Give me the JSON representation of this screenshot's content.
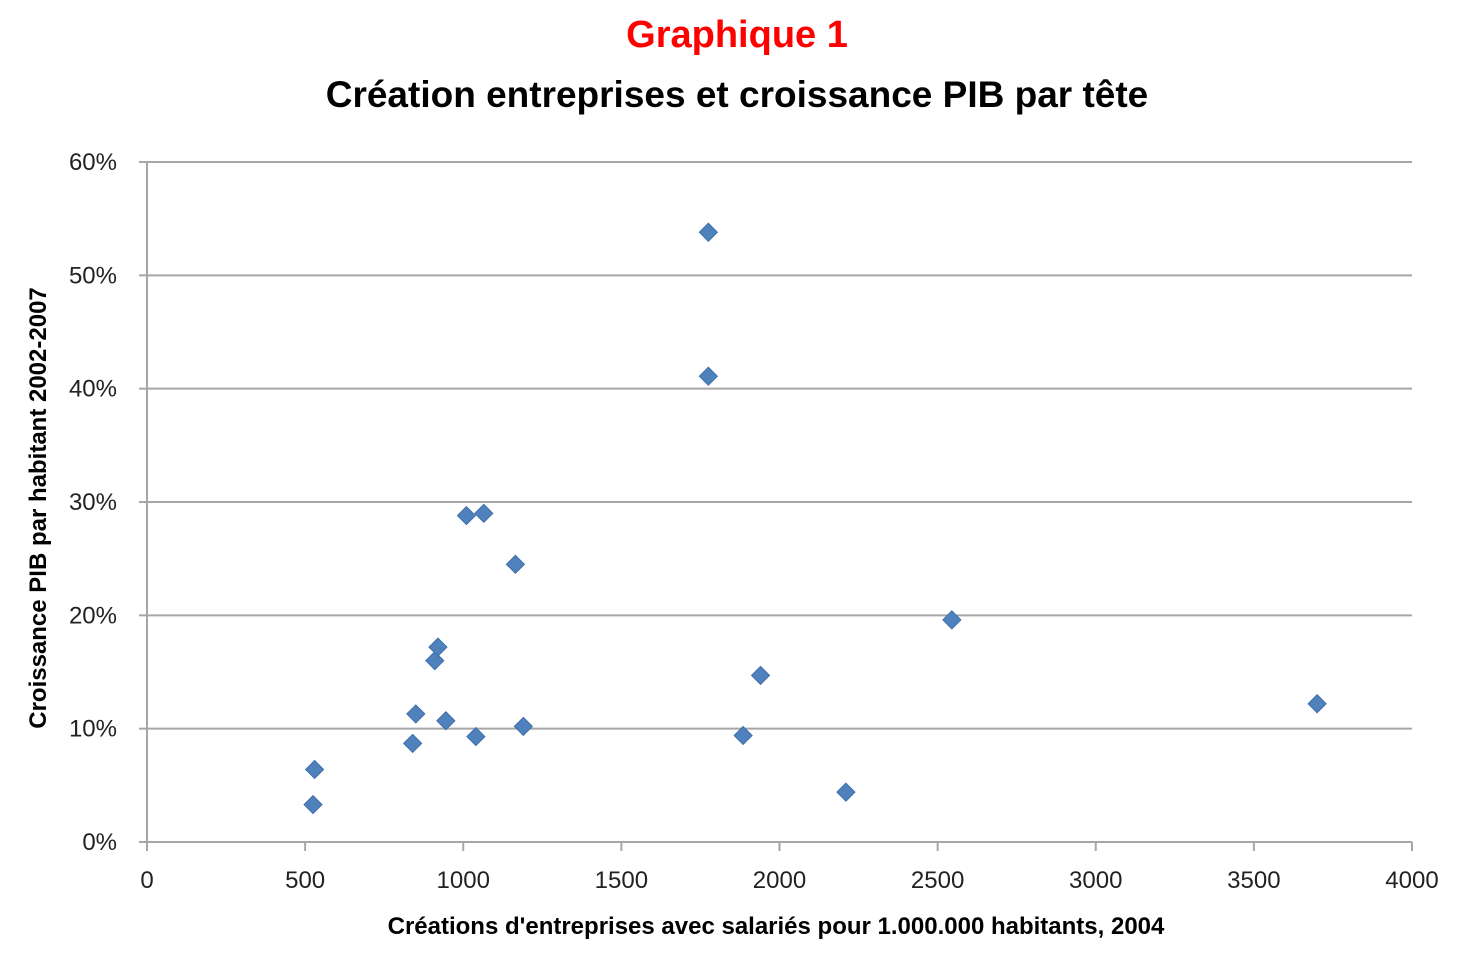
{
  "chart_data": {
    "type": "scatter",
    "title": "Graphique 1",
    "subtitle": "Création entreprises et croissance PIB par tête",
    "xlabel": "Créations d'entreprises avec salariés pour 1.000.000 habitants, 2004",
    "ylabel": "Croissance PIB par habitant 2002-2007",
    "xlim": [
      0,
      4000
    ],
    "ylim": [
      0,
      0.6
    ],
    "x_ticks": [
      0,
      500,
      1000,
      1500,
      2000,
      2500,
      3000,
      3500,
      4000
    ],
    "x_tick_labels": [
      "0",
      "500",
      "1000",
      "1500",
      "2000",
      "2500",
      "3000",
      "3500",
      "4000"
    ],
    "y_ticks": [
      0,
      0.1,
      0.2,
      0.3,
      0.4,
      0.5,
      0.6
    ],
    "y_tick_labels": [
      "0%",
      "10%",
      "20%",
      "30%",
      "40%",
      "50%",
      "60%"
    ],
    "grid": "horizontal",
    "marker": "diamond",
    "colors": {
      "marker": "#4f81bd",
      "grid": "#a6a6a6",
      "axis": "#a6a6a6",
      "title": "#ff0000"
    },
    "points": [
      {
        "x": 525,
        "y": 0.033
      },
      {
        "x": 530,
        "y": 0.064
      },
      {
        "x": 840,
        "y": 0.087
      },
      {
        "x": 850,
        "y": 0.113
      },
      {
        "x": 910,
        "y": 0.16
      },
      {
        "x": 920,
        "y": 0.172
      },
      {
        "x": 945,
        "y": 0.107
      },
      {
        "x": 1010,
        "y": 0.288
      },
      {
        "x": 1040,
        "y": 0.093
      },
      {
        "x": 1065,
        "y": 0.29
      },
      {
        "x": 1165,
        "y": 0.245
      },
      {
        "x": 1190,
        "y": 0.102
      },
      {
        "x": 1775,
        "y": 0.538
      },
      {
        "x": 1775,
        "y": 0.411
      },
      {
        "x": 1885,
        "y": 0.094
      },
      {
        "x": 1940,
        "y": 0.147
      },
      {
        "x": 2210,
        "y": 0.044
      },
      {
        "x": 2545,
        "y": 0.196
      },
      {
        "x": 3700,
        "y": 0.122
      }
    ]
  }
}
